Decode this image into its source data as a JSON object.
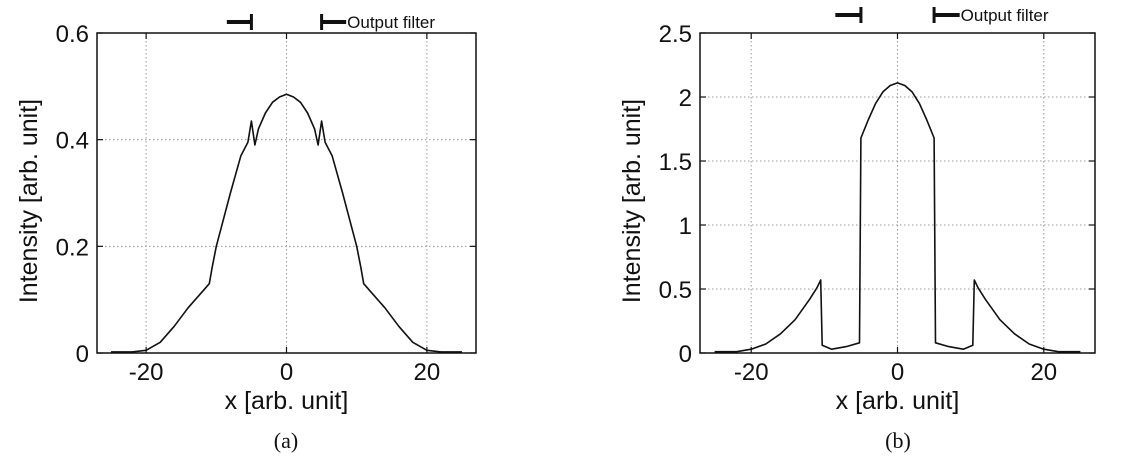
{
  "chart_data": [
    {
      "type": "line",
      "caption": "(a)",
      "xlabel": "x [arb. unit]",
      "ylabel": "Intensity [arb. unit]",
      "xlim": [
        -27,
        27
      ],
      "ylim": [
        0,
        0.6
      ],
      "xticks": [
        -20,
        0,
        20
      ],
      "yticks": [
        0,
        0.2,
        0.4,
        0.6
      ],
      "xtick_labels": [
        "-20",
        "0",
        "20"
      ],
      "ytick_labels": [
        "0",
        "0.2",
        "0.4",
        "0.6"
      ],
      "grid": true,
      "legend_label": "Output filter",
      "filter_left": [
        -8.5,
        -5
      ],
      "filter_right": [
        5,
        8.5
      ],
      "series": [
        {
          "x": [
            -25,
            -22,
            -20,
            -18,
            -16,
            -14,
            -12,
            -11,
            -10.6,
            -10,
            -8,
            -6.5,
            -5.5,
            -5,
            -4.5,
            -4,
            -3,
            -2,
            -1,
            0,
            1,
            2,
            3,
            4,
            4.5,
            5,
            5.5,
            6.5,
            8,
            10,
            10.6,
            11,
            12,
            14,
            16,
            18,
            20,
            22,
            25
          ],
          "y": [
            0.002,
            0.002,
            0.005,
            0.02,
            0.05,
            0.085,
            0.115,
            0.13,
            0.16,
            0.2,
            0.3,
            0.37,
            0.395,
            0.435,
            0.39,
            0.42,
            0.45,
            0.47,
            0.48,
            0.485,
            0.48,
            0.47,
            0.45,
            0.42,
            0.39,
            0.435,
            0.395,
            0.37,
            0.3,
            0.2,
            0.16,
            0.13,
            0.115,
            0.085,
            0.05,
            0.02,
            0.005,
            0.002,
            0.002
          ]
        }
      ]
    },
    {
      "type": "line",
      "caption": "(b)",
      "xlabel": "x [arb. unit]",
      "ylabel": "Intensity [arb. unit]",
      "xlim": [
        -27,
        27
      ],
      "ylim": [
        0,
        2.5
      ],
      "xticks": [
        -20,
        0,
        20
      ],
      "yticks": [
        0,
        0.5,
        1,
        1.5,
        2,
        2.5
      ],
      "xtick_labels": [
        "-20",
        "0",
        "20"
      ],
      "ytick_labels": [
        "0",
        "0.5",
        "1",
        "1.5",
        "2",
        "2.5"
      ],
      "grid": true,
      "legend_label": "Output filter",
      "filter_left": [
        -8.5,
        -5
      ],
      "filter_right": [
        5,
        8.5
      ],
      "series": [
        {
          "x": [
            -25,
            -22,
            -20,
            -18,
            -16,
            -14,
            -12,
            -11,
            -10.5,
            -10.3,
            -9,
            -7,
            -5.2,
            -5,
            -4,
            -3,
            -2,
            -1,
            0,
            1,
            2,
            3,
            4,
            5,
            5.2,
            7,
            9,
            10.3,
            10.5,
            11,
            12,
            14,
            16,
            18,
            20,
            22,
            25
          ],
          "y": [
            0.01,
            0.01,
            0.03,
            0.07,
            0.15,
            0.26,
            0.42,
            0.51,
            0.57,
            0.06,
            0.03,
            0.05,
            0.08,
            1.68,
            1.82,
            1.95,
            2.04,
            2.09,
            2.11,
            2.09,
            2.04,
            1.95,
            1.82,
            1.68,
            0.08,
            0.05,
            0.03,
            0.06,
            0.57,
            0.51,
            0.42,
            0.26,
            0.15,
            0.07,
            0.03,
            0.01,
            0.01
          ]
        }
      ]
    }
  ]
}
